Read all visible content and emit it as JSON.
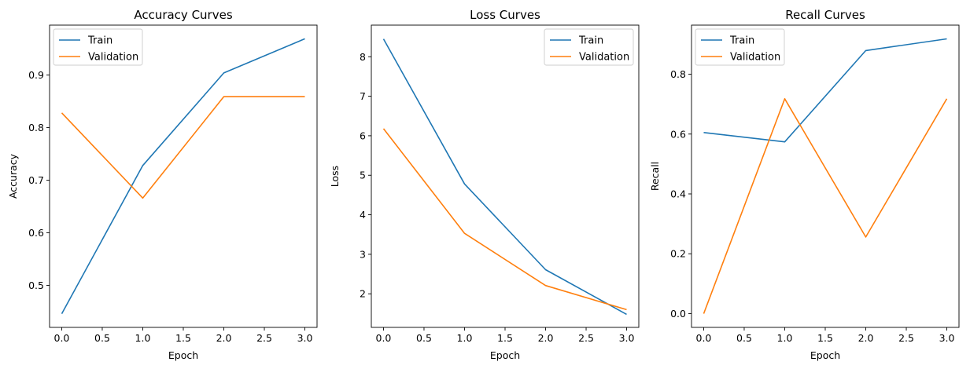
{
  "colors": {
    "train": "#1f77b4",
    "validation": "#ff7f0e"
  },
  "chart_data": [
    {
      "type": "line",
      "title": "Accuracy Curves",
      "xlabel": "Epoch",
      "ylabel": "Accuracy",
      "xlim": [
        -0.15,
        3.15
      ],
      "ylim": [
        0.42,
        0.995
      ],
      "xticks": [
        "0.0",
        "0.5",
        "1.0",
        "1.5",
        "2.0",
        "2.5",
        "3.0"
      ],
      "yticks": [
        "0.5",
        "0.6",
        "0.7",
        "0.8",
        "0.9"
      ],
      "legend_position": "top-left",
      "grid": false,
      "x": [
        0,
        1,
        2,
        3
      ],
      "series": [
        {
          "name": "Train",
          "values": [
            0.446,
            0.728,
            0.904,
            0.969
          ]
        },
        {
          "name": "Validation",
          "values": [
            0.828,
            0.666,
            0.859,
            0.859
          ]
        }
      ]
    },
    {
      "type": "line",
      "title": "Loss Curves",
      "xlabel": "Epoch",
      "ylabel": "Loss",
      "xlim": [
        -0.15,
        3.15
      ],
      "ylim": [
        1.15,
        8.8
      ],
      "xticks": [
        "0.0",
        "0.5",
        "1.0",
        "1.5",
        "2.0",
        "2.5",
        "3.0"
      ],
      "yticks": [
        "2",
        "3",
        "4",
        "5",
        "6",
        "7",
        "8"
      ],
      "legend_position": "top-right",
      "grid": false,
      "x": [
        0,
        1,
        2,
        3
      ],
      "series": [
        {
          "name": "Train",
          "values": [
            8.45,
            4.78,
            2.61,
            1.48
          ]
        },
        {
          "name": "Validation",
          "values": [
            6.18,
            3.53,
            2.21,
            1.6
          ]
        }
      ]
    },
    {
      "type": "line",
      "title": "Recall Curves",
      "xlabel": "Epoch",
      "ylabel": "Recall",
      "xlim": [
        -0.15,
        3.15
      ],
      "ylim": [
        -0.046,
        0.964
      ],
      "xticks": [
        "0.0",
        "0.5",
        "1.0",
        "1.5",
        "2.0",
        "2.5",
        "3.0"
      ],
      "yticks": [
        "0.0",
        "0.2",
        "0.4",
        "0.6",
        "0.8"
      ],
      "legend_position": "top-left",
      "grid": false,
      "x": [
        0,
        1,
        2,
        3
      ],
      "series": [
        {
          "name": "Train",
          "values": [
            0.605,
            0.574,
            0.879,
            0.918
          ]
        },
        {
          "name": "Validation",
          "values": [
            0.0,
            0.718,
            0.256,
            0.718
          ]
        }
      ]
    }
  ]
}
